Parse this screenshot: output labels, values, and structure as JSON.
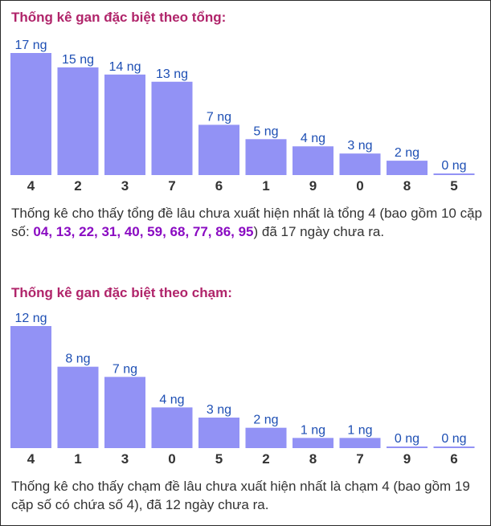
{
  "colors": {
    "bar": "#9292f5",
    "title": "#b0246a",
    "value": "#1e4fb4",
    "pairs": "#8a0bc2"
  },
  "section1": {
    "title": "Thống kê gan đặc biệt theo tổng:",
    "summary_before": "Thống kê cho thấy tổng đề lâu chưa xuất hiện nhất là tổng 4 (bao gồm 10 cặp số: ",
    "pairs": "04, 13, 22, 31, 40, 59, 68, 77, 86, 95",
    "summary_after": ") đã 17 ngày chưa ra."
  },
  "section2": {
    "title": "Thống kê gan đặc biệt theo chạm:",
    "summary": "Thống kê cho thấy chạm đề lâu chưa xuất hiện nhất là chạm 4 (bao gồm 19 cặp số có chứa số 4), đã 12 ngày chưa ra."
  },
  "chart_data": [
    {
      "type": "bar",
      "title": "Thống kê gan đặc biệt theo tổng:",
      "categories": [
        "4",
        "2",
        "3",
        "7",
        "6",
        "1",
        "9",
        "0",
        "8",
        "5"
      ],
      "values": [
        17,
        15,
        14,
        13,
        7,
        5,
        4,
        3,
        2,
        0
      ],
      "labels": [
        "17 ng",
        "15 ng",
        "14 ng",
        "13 ng",
        "7 ng",
        "5 ng",
        "4 ng",
        "3 ng",
        "2 ng",
        "0 ng"
      ],
      "xlabel": "",
      "ylabel": "",
      "ylim": [
        0,
        17
      ],
      "grid": false
    },
    {
      "type": "bar",
      "title": "Thống kê gan đặc biệt theo chạm:",
      "categories": [
        "4",
        "1",
        "3",
        "0",
        "5",
        "2",
        "8",
        "7",
        "9",
        "6"
      ],
      "values": [
        12,
        8,
        7,
        4,
        3,
        2,
        1,
        1,
        0,
        0
      ],
      "labels": [
        "12 ng",
        "8 ng",
        "7 ng",
        "4 ng",
        "3 ng",
        "2 ng",
        "1 ng",
        "1 ng",
        "0 ng",
        "0 ng"
      ],
      "xlabel": "",
      "ylabel": "",
      "ylim": [
        0,
        12
      ],
      "grid": false
    }
  ]
}
